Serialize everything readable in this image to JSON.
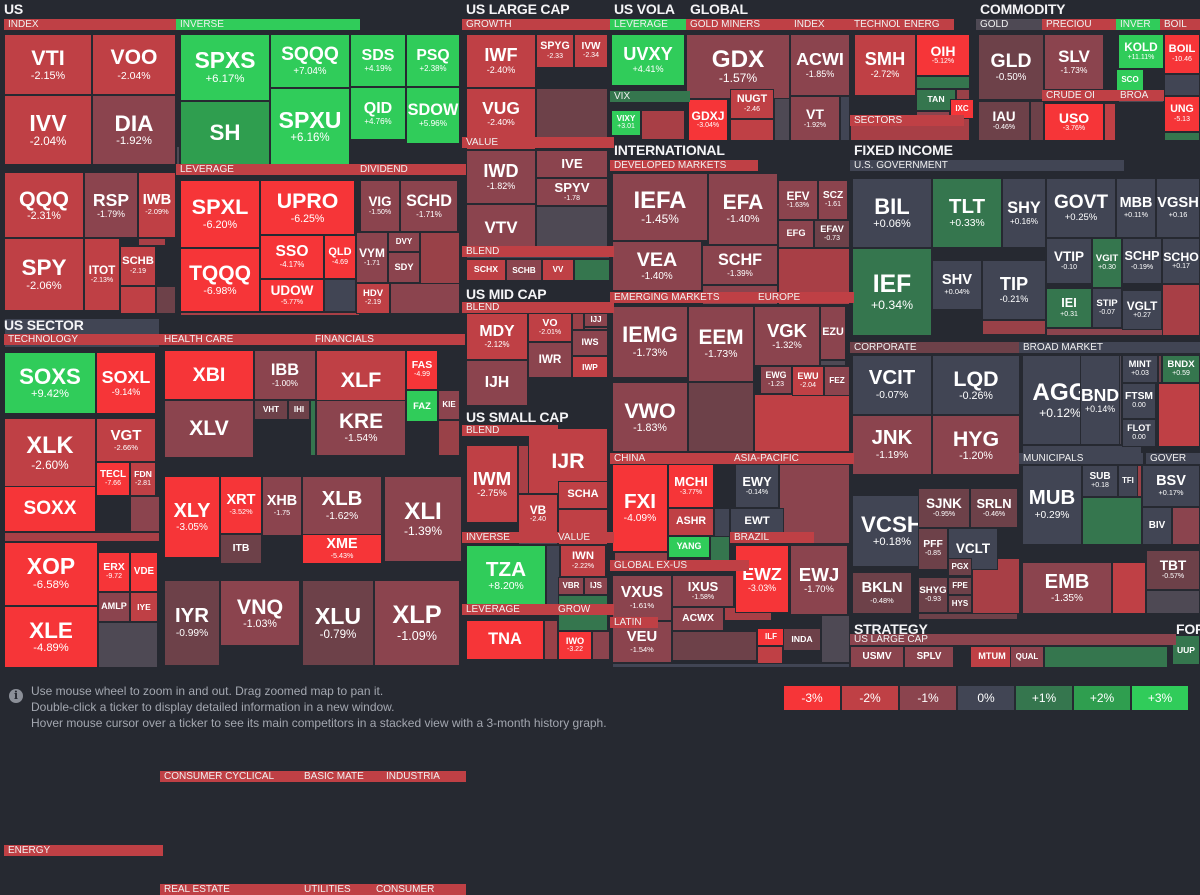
{
  "legend": {
    "items": [
      {
        "label": "-3%",
        "color": "#f63538"
      },
      {
        "label": "-2%",
        "color": "#bf4045"
      },
      {
        "label": "-1%",
        "color": "#8b444e"
      },
      {
        "label": "0%",
        "color": "#414554"
      },
      {
        "label": "+1%",
        "color": "#35764e"
      },
      {
        "label": "+2%",
        "color": "#2f9e4f"
      },
      {
        "label": "+3%",
        "color": "#30cc5a"
      }
    ]
  },
  "hints": {
    "line1": "Use mouse wheel to zoom in and out. Drag zoomed map to pan it.",
    "line2": "Double-click a ticker to display detailed information in a new window.",
    "line3": "Hover mouse cursor over a ticker to see its main competitors in a stacked view with a 3-month history graph."
  },
  "groups": [
    {
      "title": "US",
      "subs": [
        {
          "title": "INDEX"
        },
        {
          "title": "INVERSE"
        },
        {
          "title": "LEVERAGE"
        },
        {
          "title": "DIVIDEND"
        }
      ]
    },
    {
      "title": "US SECTOR",
      "subs": [
        {
          "title": "TECHNOLOGY"
        },
        {
          "title": "HEALTH CARE"
        },
        {
          "title": "FINANCIALS"
        },
        {
          "title": "CONSUMER CYCLICAL"
        },
        {
          "title": "BASIC MATE"
        },
        {
          "title": "INDUSTRIA"
        },
        {
          "title": "ENERGY"
        },
        {
          "title": "REAL ESTATE"
        },
        {
          "title": "UTILITIES"
        },
        {
          "title": "CONSUMER"
        }
      ]
    },
    {
      "title": "US LARGE CAP",
      "subs": [
        {
          "title": "GROWTH"
        },
        {
          "title": "VALUE"
        },
        {
          "title": "BLEND"
        }
      ]
    },
    {
      "title": "US MID CAP",
      "subs": [
        {
          "title": "BLEND"
        }
      ]
    },
    {
      "title": "US SMALL CAP",
      "subs": [
        {
          "title": "BLEND"
        },
        {
          "title": "INVERSE"
        },
        {
          "title": "VALUE"
        },
        {
          "title": "LEVERAGE"
        },
        {
          "title": "GROW"
        }
      ]
    },
    {
      "title": "US VOLA",
      "subs": [
        {
          "title": "LEVERAGE"
        },
        {
          "title": "VIX"
        }
      ]
    },
    {
      "title": "GLOBAL",
      "subs": [
        {
          "title": "GOLD MINERS"
        },
        {
          "title": "INDEX"
        },
        {
          "title": "TECHNOL"
        },
        {
          "title": "ENERG"
        },
        {
          "title": "SECTORS"
        }
      ]
    },
    {
      "title": "COMMODITY",
      "subs": [
        {
          "title": "GOLD"
        },
        {
          "title": "PRECIOU"
        },
        {
          "title": "INVER"
        },
        {
          "title": "BOIL"
        },
        {
          "title": "CRUDE OI"
        },
        {
          "title": "BROA"
        }
      ]
    },
    {
      "title": "INTERNATIONAL",
      "subs": [
        {
          "title": "DEVELOPED MARKETS"
        },
        {
          "title": "EMERGING MARKETS"
        },
        {
          "title": "EUROPE"
        },
        {
          "title": "CHINA"
        },
        {
          "title": "ASIA-PACIFIC"
        },
        {
          "title": "GLOBAL EX-US"
        },
        {
          "title": "BRAZIL"
        },
        {
          "title": "LATIN"
        }
      ]
    },
    {
      "title": "FIXED INCOME",
      "subs": [
        {
          "title": "U.S. GOVERNMENT"
        },
        {
          "title": "CORPORATE"
        },
        {
          "title": "BROAD MARKET"
        },
        {
          "title": "MUNICIPALS"
        },
        {
          "title": "GOVER"
        },
        {
          "title": "SOVEREIGN"
        },
        {
          "title": "INVERS"
        }
      ]
    },
    {
      "title": "STRATEGY",
      "subs": [
        {
          "title": "US LARGE CAP"
        }
      ]
    },
    {
      "title": "FORE",
      "subs": []
    }
  ],
  "tiles": [
    {
      "ticker": "VTI",
      "change": "-2.15%"
    },
    {
      "ticker": "VOO",
      "change": "-2.04%"
    },
    {
      "ticker": "IVV",
      "change": "-2.04%"
    },
    {
      "ticker": "DIA",
      "change": "-1.92%"
    },
    {
      "ticker": "QQQ",
      "change": "-2.31%"
    },
    {
      "ticker": "RSP",
      "change": "-1.79%"
    },
    {
      "ticker": "IWB",
      "change": "-2.09%"
    },
    {
      "ticker": "SPY",
      "change": "-2.06%"
    },
    {
      "ticker": "ITOT",
      "change": "-2.13%"
    },
    {
      "ticker": "SCHB",
      "change": "-2.19"
    },
    {
      "ticker": "SPXS",
      "change": "+6.17%"
    },
    {
      "ticker": "SQQQ",
      "change": "+7.04%"
    },
    {
      "ticker": "SDS",
      "change": "+4.19%"
    },
    {
      "ticker": "PSQ",
      "change": "+2.38%"
    },
    {
      "ticker": "SH",
      "change": ""
    },
    {
      "ticker": "SPXU",
      "change": "+6.16%"
    },
    {
      "ticker": "QID",
      "change": "+4.76%"
    },
    {
      "ticker": "SDOW",
      "change": "+5.96%"
    },
    {
      "ticker": "SPXL",
      "change": "-6.20%"
    },
    {
      "ticker": "UPRO",
      "change": "-6.25%"
    },
    {
      "ticker": "TQQQ",
      "change": "-6.98%"
    },
    {
      "ticker": "SSO",
      "change": "-4.17%"
    },
    {
      "ticker": "QLD",
      "change": "-4.69"
    },
    {
      "ticker": "UDOW",
      "change": "-5.77%"
    },
    {
      "ticker": "VIG",
      "change": "-1.50%"
    },
    {
      "ticker": "SCHD",
      "change": "-1.71%"
    },
    {
      "ticker": "VYM",
      "change": "-1.71"
    },
    {
      "ticker": "DVY",
      "change": ""
    },
    {
      "ticker": "SDY",
      "change": ""
    },
    {
      "ticker": "HDV",
      "change": "-2.19"
    },
    {
      "ticker": "IWF",
      "change": "-2.40%"
    },
    {
      "ticker": "SPYG",
      "change": "-2.33"
    },
    {
      "ticker": "IVW",
      "change": "-2.34"
    },
    {
      "ticker": "VUG",
      "change": "-2.40%"
    },
    {
      "ticker": "IWD",
      "change": "-1.82%"
    },
    {
      "ticker": "IVE",
      "change": ""
    },
    {
      "ticker": "SPYV",
      "change": "-1.78"
    },
    {
      "ticker": "VTV",
      "change": ""
    },
    {
      "ticker": "SCHX",
      "change": ""
    },
    {
      "ticker": "SCHB",
      "change": ""
    },
    {
      "ticker": "VV",
      "change": ""
    },
    {
      "ticker": "MDY",
      "change": "-2.12%"
    },
    {
      "ticker": "VO",
      "change": "-2.01%"
    },
    {
      "ticker": "IJJ",
      "change": ""
    },
    {
      "ticker": "IWS",
      "change": ""
    },
    {
      "ticker": "IWR",
      "change": ""
    },
    {
      "ticker": "IWP",
      "change": ""
    },
    {
      "ticker": "IJH",
      "change": ""
    },
    {
      "ticker": "IJR",
      "change": ""
    },
    {
      "ticker": "IWM",
      "change": "-2.75%"
    },
    {
      "ticker": "VB",
      "change": "-2.40"
    },
    {
      "ticker": "SCHA",
      "change": ""
    },
    {
      "ticker": "TZA",
      "change": "+8.20%"
    },
    {
      "ticker": "IWN",
      "change": "-2.22%"
    },
    {
      "ticker": "VBR",
      "change": ""
    },
    {
      "ticker": "IJS",
      "change": ""
    },
    {
      "ticker": "TNA",
      "change": ""
    },
    {
      "ticker": "IWO",
      "change": "-3.22"
    },
    {
      "ticker": "UVXY",
      "change": "+4.41%"
    },
    {
      "ticker": "VIXY",
      "change": "+3.01"
    },
    {
      "ticker": "GDX",
      "change": "-1.57%"
    },
    {
      "ticker": "GDXJ",
      "change": "-3.04%"
    },
    {
      "ticker": "NUGT",
      "change": "-2.46"
    },
    {
      "ticker": "ACWI",
      "change": "-1.85%"
    },
    {
      "ticker": "VT",
      "change": "-1.92%"
    },
    {
      "ticker": "SMH",
      "change": "-2.72%"
    },
    {
      "ticker": "OIH",
      "change": "-5.12%"
    },
    {
      "ticker": "TAN",
      "change": ""
    },
    {
      "ticker": "IXC",
      "change": ""
    },
    {
      "ticker": "GLD",
      "change": "-0.50%"
    },
    {
      "ticker": "IAU",
      "change": "-0.46%"
    },
    {
      "ticker": "SLV",
      "change": "-1.73%"
    },
    {
      "ticker": "KOLD",
      "change": "+11.11%"
    },
    {
      "ticker": "SCO",
      "change": ""
    },
    {
      "ticker": "BOIL",
      "change": "-10.46"
    },
    {
      "ticker": "USO",
      "change": "-3.76%"
    },
    {
      "ticker": "UNG",
      "change": "-5.13"
    },
    {
      "ticker": "IEFA",
      "change": "-1.45%"
    },
    {
      "ticker": "EFA",
      "change": "-1.40%"
    },
    {
      "ticker": "EFV",
      "change": "-1.63%"
    },
    {
      "ticker": "SCZ",
      "change": "-1.61"
    },
    {
      "ticker": "VEA",
      "change": "-1.40%"
    },
    {
      "ticker": "SCHF",
      "change": "-1.39%"
    },
    {
      "ticker": "EFG",
      "change": ""
    },
    {
      "ticker": "EFAV",
      "change": "-0.73"
    },
    {
      "ticker": "IEMG",
      "change": "-1.73%"
    },
    {
      "ticker": "EEM",
      "change": "-1.73%"
    },
    {
      "ticker": "VWO",
      "change": "-1.83%"
    },
    {
      "ticker": "VGK",
      "change": "-1.32%"
    },
    {
      "ticker": "EZU",
      "change": ""
    },
    {
      "ticker": "EWG",
      "change": "-1.23"
    },
    {
      "ticker": "EWU",
      "change": "-2.04"
    },
    {
      "ticker": "FEZ",
      "change": ""
    },
    {
      "ticker": "FXI",
      "change": "-4.09%"
    },
    {
      "ticker": "MCHI",
      "change": "-3.77%"
    },
    {
      "ticker": "ASHR",
      "change": ""
    },
    {
      "ticker": "YANG",
      "change": ""
    },
    {
      "ticker": "EWY",
      "change": "-0.14%"
    },
    {
      "ticker": "EWT",
      "change": ""
    },
    {
      "ticker": "VXUS",
      "change": "-1.61%"
    },
    {
      "ticker": "IXUS",
      "change": "-1.58%"
    },
    {
      "ticker": "ACWX",
      "change": ""
    },
    {
      "ticker": "VEU",
      "change": "-1.54%"
    },
    {
      "ticker": "EWZ",
      "change": "-3.03%"
    },
    {
      "ticker": "EWJ",
      "change": "-1.70%"
    },
    {
      "ticker": "ILF",
      "change": ""
    },
    {
      "ticker": "INDA",
      "change": ""
    },
    {
      "ticker": "BIL",
      "change": "+0.06%"
    },
    {
      "ticker": "TLT",
      "change": "+0.33%"
    },
    {
      "ticker": "SHY",
      "change": "+0.16%"
    },
    {
      "ticker": "GOVT",
      "change": "+0.25%"
    },
    {
      "ticker": "MBB",
      "change": "+0.11%"
    },
    {
      "ticker": "VGSH",
      "change": "+0.16"
    },
    {
      "ticker": "VTIP",
      "change": "-0.10"
    },
    {
      "ticker": "VGIT",
      "change": "+0.30"
    },
    {
      "ticker": "SCHP",
      "change": "-0.19%"
    },
    {
      "ticker": "SCHO",
      "change": "+0.17"
    },
    {
      "ticker": "IEF",
      "change": "+0.34%"
    },
    {
      "ticker": "SHV",
      "change": "+0.04%"
    },
    {
      "ticker": "TIP",
      "change": "-0.21%"
    },
    {
      "ticker": "IEI",
      "change": "+0.31"
    },
    {
      "ticker": "STIP",
      "change": "-0.07"
    },
    {
      "ticker": "VGLT",
      "change": "+0.27"
    },
    {
      "ticker": "VCIT",
      "change": "-0.07%"
    },
    {
      "ticker": "LQD",
      "change": "-0.26%"
    },
    {
      "ticker": "JNK",
      "change": "-1.19%"
    },
    {
      "ticker": "HYG",
      "change": "-1.20%"
    },
    {
      "ticker": "VCSH",
      "change": "+0.18%"
    },
    {
      "ticker": "SJNK",
      "change": "-0.95%"
    },
    {
      "ticker": "SRLN",
      "change": "-0.46%"
    },
    {
      "ticker": "PFF",
      "change": "-0.85"
    },
    {
      "ticker": "VCLT",
      "change": ""
    },
    {
      "ticker": "PGX",
      "change": ""
    },
    {
      "ticker": "BKLN",
      "change": "-0.48%"
    },
    {
      "ticker": "SHYG",
      "change": "-0.93"
    },
    {
      "ticker": "FPE",
      "change": ""
    },
    {
      "ticker": "HYS",
      "change": ""
    },
    {
      "ticker": "AGG",
      "change": "+0.12%"
    },
    {
      "ticker": "BND",
      "change": "+0.14%"
    },
    {
      "ticker": "MINT",
      "change": "+0.03"
    },
    {
      "ticker": "BNDX",
      "change": "+0.59"
    },
    {
      "ticker": "FTSM",
      "change": "0.00"
    },
    {
      "ticker": "FLOT",
      "change": "0.00"
    },
    {
      "ticker": "MUB",
      "change": "+0.29%"
    },
    {
      "ticker": "SUB",
      "change": "+0.18"
    },
    {
      "ticker": "TFI",
      "change": ""
    },
    {
      "ticker": "BSV",
      "change": "+0.17%"
    },
    {
      "ticker": "BIV",
      "change": ""
    },
    {
      "ticker": "EMB",
      "change": "-1.35%"
    },
    {
      "ticker": "TBT",
      "change": "-0.57%"
    },
    {
      "ticker": "XBI",
      "change": ""
    },
    {
      "ticker": "IBB",
      "change": "-1.00%"
    },
    {
      "ticker": "VHT",
      "change": ""
    },
    {
      "ticker": "IHI",
      "change": ""
    },
    {
      "ticker": "XLV",
      "change": ""
    },
    {
      "ticker": "XLF",
      "change": ""
    },
    {
      "ticker": "FAS",
      "change": "-4.99"
    },
    {
      "ticker": "KRE",
      "change": "-1.54%"
    },
    {
      "ticker": "FAZ",
      "change": ""
    },
    {
      "ticker": "KIE",
      "change": ""
    },
    {
      "ticker": "SOXS",
      "change": "+9.42%"
    },
    {
      "ticker": "SOXL",
      "change": "-9.14%"
    },
    {
      "ticker": "XLK",
      "change": "-2.60%"
    },
    {
      "ticker": "VGT",
      "change": "-2.66%"
    },
    {
      "ticker": "TECL",
      "change": "-7.66"
    },
    {
      "ticker": "FDN",
      "change": "-2.81"
    },
    {
      "ticker": "SOXX",
      "change": ""
    },
    {
      "ticker": "XLY",
      "change": "-3.05%"
    },
    {
      "ticker": "XRT",
      "change": "-3.52%"
    },
    {
      "ticker": "XHB",
      "change": "-1.75"
    },
    {
      "ticker": "ITB",
      "change": ""
    },
    {
      "ticker": "XLB",
      "change": "-1.62%"
    },
    {
      "ticker": "XME",
      "change": "-5.43%"
    },
    {
      "ticker": "XLI",
      "change": "-1.39%"
    },
    {
      "ticker": "XOP",
      "change": "-6.58%"
    },
    {
      "ticker": "ERX",
      "change": "-9.72"
    },
    {
      "ticker": "VDE",
      "change": ""
    },
    {
      "ticker": "AMLP",
      "change": ""
    },
    {
      "ticker": "IYE",
      "change": ""
    },
    {
      "ticker": "XLE",
      "change": "-4.89%"
    },
    {
      "ticker": "IYR",
      "change": "-0.99%"
    },
    {
      "ticker": "VNQ",
      "change": "-1.03%"
    },
    {
      "ticker": "XLU",
      "change": "-0.79%"
    },
    {
      "ticker": "XLP",
      "change": "-1.09%"
    },
    {
      "ticker": "USMV",
      "change": ""
    },
    {
      "ticker": "SPLV",
      "change": ""
    },
    {
      "ticker": "MTUM",
      "change": ""
    },
    {
      "ticker": "QUAL",
      "change": ""
    },
    {
      "ticker": "UUP",
      "change": ""
    }
  ]
}
